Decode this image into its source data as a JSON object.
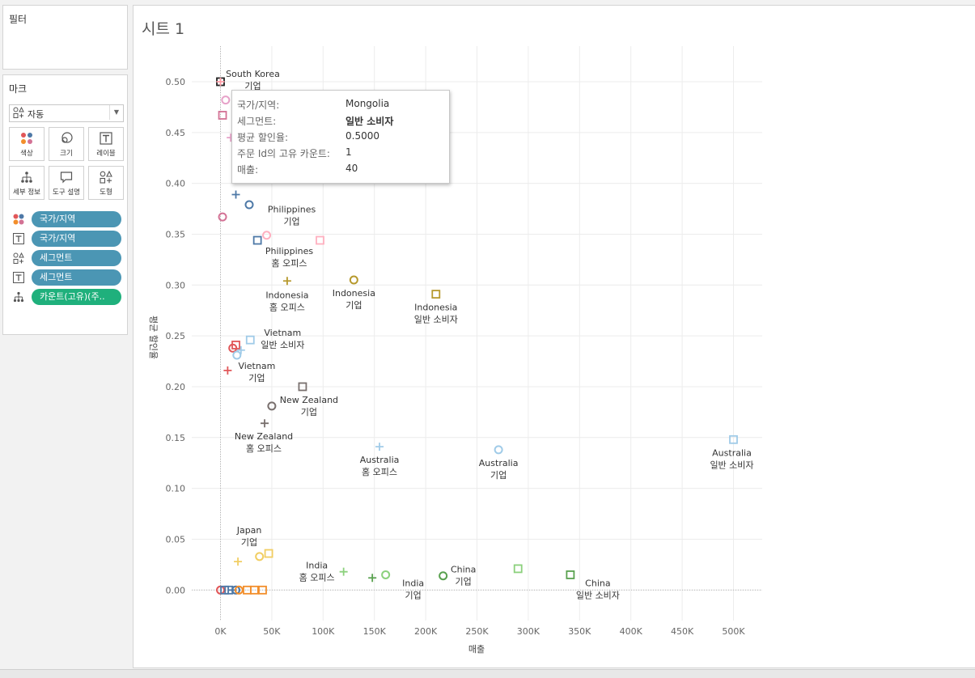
{
  "panels": {
    "filters_title": "필터",
    "marks_title": "마크",
    "mark_type": "자동",
    "buttons": [
      "색상",
      "크기",
      "레이블",
      "세부 정보",
      "도구 설명",
      "도형"
    ],
    "pills": [
      {
        "icon": "color-icon",
        "label": "국가/지역",
        "color": "#4b96b4"
      },
      {
        "icon": "label-icon",
        "label": "국가/지역",
        "color": "#4b96b4"
      },
      {
        "icon": "shape-icon",
        "label": "세그먼트",
        "color": "#4b96b4"
      },
      {
        "icon": "label-icon",
        "label": "세그먼트",
        "color": "#4b96b4"
      },
      {
        "icon": "detail-icon",
        "label": "카운트(고유)(주..",
        "color": "#1fb07c"
      }
    ]
  },
  "sheet": {
    "title": "시트 1"
  },
  "tooltip": {
    "rows": [
      {
        "key": "국가/지역:",
        "value": "Mongolia",
        "bold": false
      },
      {
        "key": "세그먼트:",
        "value": "일반 소비자",
        "bold": true
      },
      {
        "key": "평균 할인율:",
        "value": "0.5000",
        "bold": false
      },
      {
        "key": "주문 Id의 고유 카운트:",
        "value": "1",
        "bold": false
      },
      {
        "key": "매출:",
        "value": "40",
        "bold": false
      }
    ]
  },
  "chart_data": {
    "type": "scatter",
    "xlabel": "매출",
    "ylabel": "평균 할인율",
    "x_ticks": [
      "0K",
      "50K",
      "100K",
      "150K",
      "200K",
      "250K",
      "300K",
      "350K",
      "400K",
      "450K",
      "500K"
    ],
    "y_ticks": [
      "0.00",
      "0.05",
      "0.10",
      "0.15",
      "0.20",
      "0.25",
      "0.30",
      "0.35",
      "0.40",
      "0.45",
      "0.50"
    ],
    "xlim": [
      -28000,
      528000
    ],
    "ylim": [
      -0.03,
      0.535
    ],
    "grid": true,
    "country_colors": {
      "South Korea": "#ff9da7",
      "Mongolia": "#d37295",
      "Philippines": "#4e79a7",
      "Indonesia": "#b6992d",
      "Vietnam": "#e15759",
      "New Zealand": "#79706e",
      "Australia": "#a0cbe8",
      "Japan": "#f1ce63",
      "India": "#59a14f",
      "China": "#499894",
      "Other": "#f28e2b"
    },
    "segment_shapes": {
      "기업": "circle",
      "일반 소비자": "square",
      "홈 오피스": "plus"
    },
    "points": [
      {
        "x": 0,
        "y": 0.5,
        "shape": "square",
        "color": "#222222",
        "labels": [
          "South Korea",
          "기업"
        ]
      },
      {
        "x": 0,
        "y": 0.5,
        "shape": "plus",
        "color": "#ff9da7",
        "labels": []
      },
      {
        "x": 5000,
        "y": 0.482,
        "shape": "circle",
        "color": "#e7a2c9",
        "labels": []
      },
      {
        "x": 2000,
        "y": 0.467,
        "shape": "square",
        "color": "#d37295",
        "labels": []
      },
      {
        "x": 10000,
        "y": 0.445,
        "shape": "plus",
        "color": "#e7a2c9",
        "labels": []
      },
      {
        "x": 15000,
        "y": 0.389,
        "shape": "plus",
        "color": "#4e79a7",
        "labels": []
      },
      {
        "x": 28000,
        "y": 0.379,
        "shape": "circle",
        "color": "#4e79a7",
        "labels": []
      },
      {
        "x": 2000,
        "y": 0.367,
        "shape": "circle",
        "color": "#d37295",
        "labels": []
      },
      {
        "x": 45000,
        "y": 0.349,
        "shape": "circle",
        "color": "#ffb0c0",
        "labels": [
          "Philippines",
          "기업"
        ]
      },
      {
        "x": 36000,
        "y": 0.344,
        "shape": "square",
        "color": "#4e79a7",
        "labels": []
      },
      {
        "x": 97000,
        "y": 0.344,
        "shape": "square",
        "color": "#ffb0c0",
        "labels": [
          "Philippines",
          "홈 오피스"
        ]
      },
      {
        "x": 65000,
        "y": 0.304,
        "shape": "plus",
        "color": "#b6992d",
        "labels": [
          "Indonesia",
          "홈 오피스"
        ]
      },
      {
        "x": 130000,
        "y": 0.305,
        "shape": "circle",
        "color": "#b6992d",
        "labels": [
          "Indonesia",
          "기업"
        ]
      },
      {
        "x": 210000,
        "y": 0.291,
        "shape": "square",
        "color": "#b6992d",
        "labels": [
          "Indonesia",
          "일반 소비자"
        ]
      },
      {
        "x": 29000,
        "y": 0.246,
        "shape": "square",
        "color": "#a0cbe8",
        "labels": [
          "Vietnam",
          "일반 소비자"
        ]
      },
      {
        "x": 15000,
        "y": 0.241,
        "shape": "square",
        "color": "#e15759",
        "labels": []
      },
      {
        "x": 12000,
        "y": 0.238,
        "shape": "circle",
        "color": "#e15759",
        "labels": []
      },
      {
        "x": 16000,
        "y": 0.231,
        "shape": "circle",
        "color": "#a0cbe8",
        "labels": []
      },
      {
        "x": 20000,
        "y": 0.236,
        "shape": "plus",
        "color": "#a0cbe8",
        "labels": []
      },
      {
        "x": 7000,
        "y": 0.216,
        "shape": "plus",
        "color": "#e15759",
        "labels": [
          "Vietnam",
          "기업"
        ]
      },
      {
        "x": 80000,
        "y": 0.2,
        "shape": "square",
        "color": "#79706e",
        "labels": []
      },
      {
        "x": 50000,
        "y": 0.181,
        "shape": "circle",
        "color": "#79706e",
        "labels": [
          "New Zealand",
          "기업"
        ]
      },
      {
        "x": 43000,
        "y": 0.164,
        "shape": "plus",
        "color": "#79706e",
        "labels": [
          "New Zealand",
          "홈 오피스"
        ]
      },
      {
        "x": 155000,
        "y": 0.141,
        "shape": "plus",
        "color": "#a0cbe8",
        "labels": [
          "Australia",
          "홈 오피스"
        ]
      },
      {
        "x": 271000,
        "y": 0.138,
        "shape": "circle",
        "color": "#a0cbe8",
        "labels": [
          "Australia",
          "기업"
        ]
      },
      {
        "x": 500000,
        "y": 0.148,
        "shape": "square",
        "color": "#a0cbe8",
        "labels": [
          "Australia",
          "일반 소비자"
        ]
      },
      {
        "x": 17000,
        "y": 0.028,
        "shape": "plus",
        "color": "#f1ce63",
        "labels": [
          "Japan",
          "기업"
        ]
      },
      {
        "x": 38000,
        "y": 0.033,
        "shape": "circle",
        "color": "#f1ce63",
        "labels": []
      },
      {
        "x": 47000,
        "y": 0.036,
        "shape": "square",
        "color": "#f1ce63",
        "labels": []
      },
      {
        "x": 120000,
        "y": 0.018,
        "shape": "plus",
        "color": "#8cd17d",
        "labels": [
          "India",
          "홈 오피스"
        ]
      },
      {
        "x": 148000,
        "y": 0.012,
        "shape": "plus",
        "color": "#59a14f",
        "labels": []
      },
      {
        "x": 161000,
        "y": 0.015,
        "shape": "circle",
        "color": "#8cd17d",
        "labels": [
          "India",
          "기업"
        ]
      },
      {
        "x": 217000,
        "y": 0.014,
        "shape": "circle",
        "color": "#59a14f",
        "labels": [
          "China",
          "기업"
        ]
      },
      {
        "x": 290000,
        "y": 0.021,
        "shape": "square",
        "color": "#8cd17d",
        "labels": []
      },
      {
        "x": 341000,
        "y": 0.015,
        "shape": "square",
        "color": "#59a14f",
        "labels": [
          "China",
          "일반 소비자"
        ]
      },
      {
        "x": 0,
        "y": 0.0,
        "shape": "circle",
        "color": "#e15759",
        "labels": []
      },
      {
        "x": 4000,
        "y": 0.0,
        "shape": "square",
        "color": "#4e79a7",
        "labels": []
      },
      {
        "x": 8000,
        "y": 0.0,
        "shape": "square",
        "color": "#4e79a7",
        "labels": []
      },
      {
        "x": 12000,
        "y": 0.0,
        "shape": "plus",
        "color": "#4e79a7",
        "labels": []
      },
      {
        "x": 15000,
        "y": 0.0,
        "shape": "circle",
        "color": "#4e79a7",
        "labels": []
      },
      {
        "x": 18000,
        "y": 0.0,
        "shape": "circle",
        "color": "#f28e2b",
        "labels": []
      },
      {
        "x": 26000,
        "y": 0.0,
        "shape": "square",
        "color": "#f28e2b",
        "labels": []
      },
      {
        "x": 33000,
        "y": 0.0,
        "shape": "square",
        "color": "#f28e2b",
        "labels": []
      },
      {
        "x": 41000,
        "y": 0.0,
        "shape": "square",
        "color": "#f28e2b",
        "labels": []
      }
    ]
  }
}
